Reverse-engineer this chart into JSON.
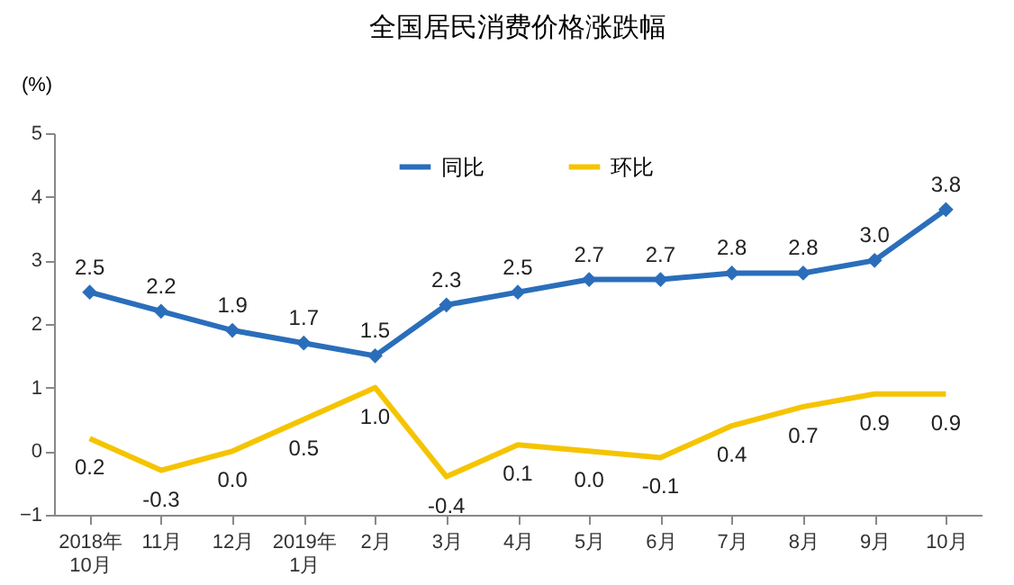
{
  "chart_data": {
    "type": "line",
    "title": "全国居民消费价格涨跌幅",
    "ylabel": "(%)",
    "categories": [
      "2018年\n10月",
      "11月",
      "12月",
      "2019年\n1月",
      "2月",
      "3月",
      "4月",
      "5月",
      "6月",
      "7月",
      "8月",
      "9月",
      "10月"
    ],
    "series": [
      {
        "name": "同比",
        "color": "#2a6ebb",
        "marker": "diamond",
        "values": [
          2.5,
          2.2,
          1.9,
          1.7,
          1.5,
          2.3,
          2.5,
          2.7,
          2.7,
          2.8,
          2.8,
          3.0,
          3.8
        ],
        "value_labels": [
          "2.5",
          "2.2",
          "1.9",
          "1.7",
          "1.5",
          "2.3",
          "2.5",
          "2.7",
          "2.7",
          "2.8",
          "2.8",
          "3.0",
          "3.8"
        ]
      },
      {
        "name": "环比",
        "color": "#f5c400",
        "marker": "none",
        "values": [
          0.2,
          -0.3,
          0.0,
          0.5,
          1.0,
          -0.4,
          0.1,
          0.0,
          -0.1,
          0.4,
          0.7,
          0.9,
          0.9
        ],
        "value_labels": [
          "0.2",
          "-0.3",
          "0.0",
          "0.5",
          "1.0",
          "-0.4",
          "0.1",
          "0.0",
          "-0.1",
          "0.4",
          "0.7",
          "0.9",
          "0.9"
        ]
      }
    ],
    "ylim": [
      -1,
      5
    ],
    "yticks": [
      -1,
      0,
      1,
      2,
      3,
      4,
      5
    ],
    "grid": false,
    "legend": "top",
    "line_style": "solid"
  }
}
